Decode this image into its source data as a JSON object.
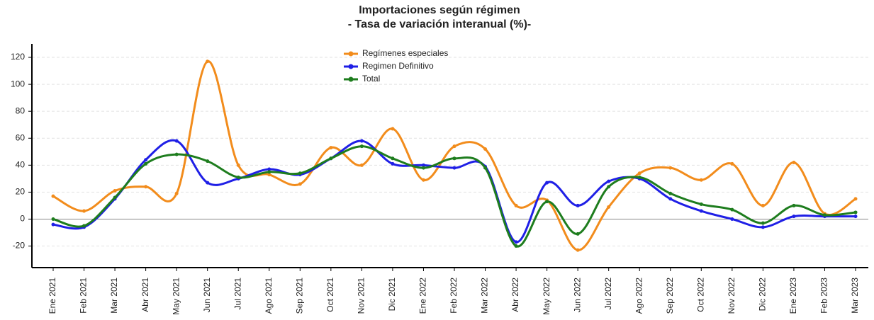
{
  "chart_data": {
    "type": "line",
    "title": "Importaciones según régimen",
    "subtitle": "- Tasa de variación interanual (%)-",
    "categories": [
      "Ene 2021",
      "Feb 2021",
      "Mar 2021",
      "Abr 2021",
      "May 2021",
      "Jun 2021",
      "Jul 2021",
      "Ago 2021",
      "Sep 2021",
      "Oct 2021",
      "Nov 2021",
      "Dic 2021",
      "Ene 2022",
      "Feb 2022",
      "Mar 2022",
      "Abr 2022",
      "May 2022",
      "Jun 2022",
      "Jul 2022",
      "Ago 2022",
      "Sep 2022",
      "Oct 2022",
      "Nov 2022",
      "Dic 2022",
      "Ene 2023",
      "Feb 2023",
      "Mar 2023"
    ],
    "series": [
      {
        "name": "Regímenes especiales",
        "color": "#f28c1c",
        "values": [
          17,
          6,
          21,
          24,
          19,
          117,
          40,
          33,
          26,
          53,
          40,
          67,
          29,
          54,
          52,
          10,
          14,
          -23,
          9,
          34,
          38,
          29,
          41,
          10,
          42,
          4,
          15
        ]
      },
      {
        "name": "Regimen Definitivo",
        "color": "#1f1fe6",
        "values": [
          -4,
          -6,
          15,
          44,
          58,
          27,
          30,
          37,
          33,
          45,
          58,
          41,
          40,
          38,
          39,
          -17,
          27,
          10,
          28,
          30,
          15,
          6,
          0,
          -6,
          2,
          2,
          2
        ]
      },
      {
        "name": "Total",
        "color": "#1e7d1e",
        "values": [
          0,
          -5,
          16,
          41,
          48,
          43,
          31,
          35,
          34,
          45,
          54,
          45,
          38,
          45,
          38,
          -20,
          13,
          -11,
          24,
          31,
          19,
          11,
          7,
          -3,
          10,
          3,
          5
        ]
      }
    ],
    "ylim": [
      -36,
      130
    ],
    "yticks": [
      -20,
      0,
      20,
      40,
      60,
      80,
      100,
      120
    ],
    "grid": true,
    "legend": "top"
  }
}
